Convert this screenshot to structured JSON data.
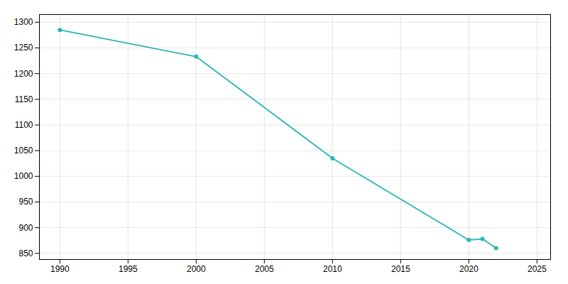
{
  "chart_data": {
    "type": "line",
    "x": [
      1990,
      2000,
      2010,
      2020,
      2021,
      2022
    ],
    "values": [
      1285,
      1233,
      1035,
      876,
      878,
      860
    ],
    "color": "#2ab5b5",
    "marker": "circle",
    "xlim": [
      1988.5,
      2026
    ],
    "ylim": [
      838,
      1315
    ],
    "xticks": [
      1990,
      1995,
      2000,
      2005,
      2010,
      2015,
      2020,
      2025
    ],
    "yticks": [
      850,
      900,
      950,
      1000,
      1050,
      1100,
      1150,
      1200,
      1250,
      1300
    ],
    "grid": true
  }
}
